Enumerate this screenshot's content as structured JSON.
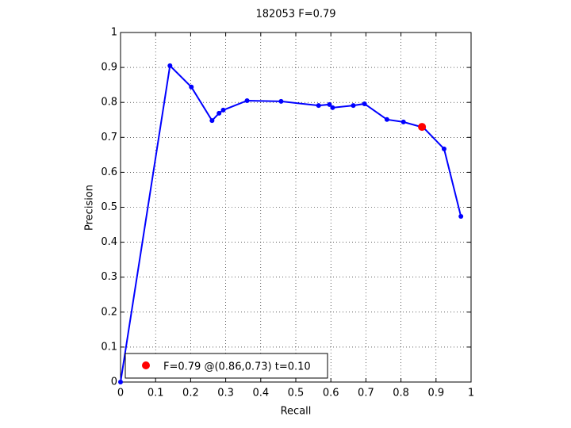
{
  "chart_data": {
    "type": "line",
    "title": "182053 F=0.79",
    "xlabel": "Recall",
    "ylabel": "Precision",
    "xlim": [
      0,
      1
    ],
    "ylim": [
      0,
      1
    ],
    "xticks": [
      0,
      0.1,
      0.2,
      0.3,
      0.4,
      0.5,
      0.6,
      0.7,
      0.8,
      0.9,
      1
    ],
    "yticks": [
      0,
      0.1,
      0.2,
      0.3,
      0.4,
      0.5,
      0.6,
      0.7,
      0.8,
      0.9,
      1
    ],
    "grid": true,
    "legend_position": "lower left",
    "series": [
      {
        "color": "#0000ff",
        "x": [
          0,
          0.141,
          0.202,
          0.261,
          0.281,
          0.293,
          0.361,
          0.458,
          0.565,
          0.596,
          0.605,
          0.664,
          0.696,
          0.76,
          0.807,
          0.864,
          0.923,
          0.971
        ],
        "values": [
          0,
          0.905,
          0.844,
          0.748,
          0.769,
          0.778,
          0.805,
          0.803,
          0.791,
          0.794,
          0.785,
          0.791,
          0.796,
          0.751,
          0.744,
          0.728,
          0.667,
          0.474
        ]
      },
      {
        "name": "F=0.79 @(0.86,0.73) t=0.10",
        "color": "#ff0000",
        "x": [
          0.86
        ],
        "values": [
          0.73
        ]
      }
    ]
  }
}
